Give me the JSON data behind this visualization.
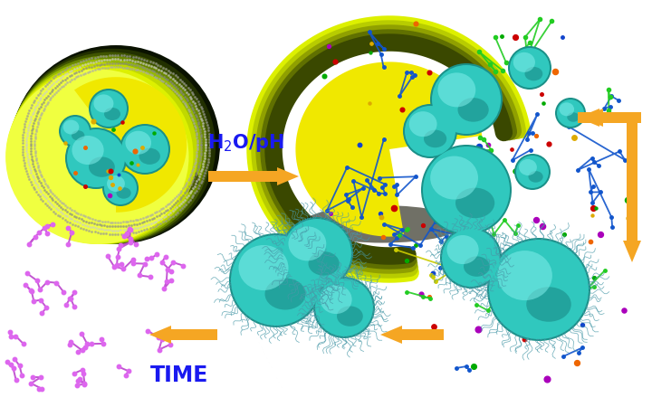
{
  "background_color": "#ffffff",
  "h2o_ph_color": "#1a1af0",
  "time_color": "#1a1af0",
  "arrow_color": "#f5a623",
  "fig_width": 7.41,
  "fig_height": 4.5,
  "dpi": 100,
  "nano_base": "#30c8be",
  "nano_highlight": "#80eeea",
  "nano_dark": "#1a9088",
  "squiggle_color": "#4899a8",
  "micro_colors": [
    "#0a1200",
    "#223000",
    "#405500",
    "#6a8800",
    "#96b800",
    "#c0d800",
    "#ddf000",
    "#f0ff40"
  ],
  "shell_colors": [
    "#ddf000",
    "#b8cc00",
    "#90a000",
    "#607000",
    "#3a4800"
  ],
  "yellow_fill": "#f0e800",
  "mol_colors": [
    "#1144cc",
    "#cc0000",
    "#ee6600",
    "#00aa00",
    "#ddaa00",
    "#aa00bb"
  ],
  "purple_color": "#bb44cc",
  "green_mol": "#22cc22",
  "yellow_mol": "#cccc00"
}
